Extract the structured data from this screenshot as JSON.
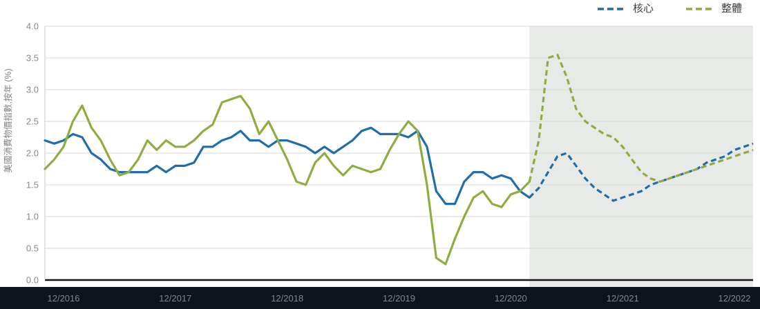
{
  "legend": {
    "items": [
      {
        "id": "core",
        "label": "核心",
        "color": "#1f6dad"
      },
      {
        "id": "headline",
        "label": "整體",
        "color": "#8ead41"
      }
    ]
  },
  "chart_data": {
    "type": "line",
    "title": "",
    "xlabel": "",
    "ylabel": "美國消費物價指數,按年 (%)",
    "ylim": [
      0,
      4
    ],
    "yticks": [
      0.0,
      0.5,
      1.0,
      1.5,
      2.0,
      2.5,
      3.0,
      3.5,
      4.0
    ],
    "x_start": "2016-10",
    "x_end": "2023-02",
    "x_interval": "monthly",
    "xtick_labels": [
      "12/2016",
      "12/2017",
      "12/2018",
      "12/2019",
      "12/2020",
      "12/2021",
      "12/2022"
    ],
    "xtick_indices": [
      2,
      14,
      26,
      38,
      50,
      62,
      74
    ],
    "forecast_start_index": 52,
    "forecast_region_color": "#e8eae8",
    "axis_band_color": "#0d141c",
    "grid": true,
    "legend_position": "top-right",
    "series": [
      {
        "id": "core",
        "name": "核心",
        "color": "#1f6dad",
        "values": [
          2.2,
          2.15,
          2.2,
          2.3,
          2.25,
          2.0,
          1.9,
          1.75,
          1.7,
          1.7,
          1.7,
          1.7,
          1.8,
          1.7,
          1.8,
          1.8,
          1.85,
          2.1,
          2.1,
          2.2,
          2.25,
          2.35,
          2.2,
          2.2,
          2.1,
          2.2,
          2.2,
          2.15,
          2.1,
          2.0,
          2.1,
          2.0,
          2.1,
          2.2,
          2.35,
          2.4,
          2.3,
          2.3,
          2.3,
          2.25,
          2.35,
          2.1,
          1.4,
          1.2,
          1.2,
          1.55,
          1.7,
          1.7,
          1.6,
          1.65,
          1.6,
          1.4,
          1.3,
          1.45,
          1.7,
          1.95,
          2.0,
          1.8,
          1.6,
          1.45,
          1.35,
          1.25,
          1.3,
          1.35,
          1.4,
          1.5,
          1.55,
          1.6,
          1.65,
          1.7,
          1.75,
          1.85,
          1.9,
          1.95,
          2.05,
          2.1,
          2.15
        ]
      },
      {
        "id": "headline",
        "name": "整體",
        "color": "#8ead41",
        "values": [
          1.75,
          1.9,
          2.1,
          2.5,
          2.75,
          2.4,
          2.2,
          1.9,
          1.65,
          1.7,
          1.9,
          2.2,
          2.05,
          2.2,
          2.1,
          2.1,
          2.2,
          2.35,
          2.45,
          2.8,
          2.85,
          2.9,
          2.7,
          2.3,
          2.5,
          2.2,
          1.9,
          1.55,
          1.5,
          1.85,
          2.0,
          1.8,
          1.65,
          1.8,
          1.75,
          1.7,
          1.75,
          2.05,
          2.3,
          2.5,
          2.35,
          1.5,
          0.35,
          0.25,
          0.65,
          1.0,
          1.3,
          1.4,
          1.2,
          1.15,
          1.35,
          1.4,
          1.55,
          2.2,
          3.5,
          3.55,
          3.2,
          2.7,
          2.5,
          2.4,
          2.3,
          2.25,
          2.1,
          1.9,
          1.7,
          1.6,
          1.55,
          1.6,
          1.65,
          1.7,
          1.75,
          1.8,
          1.85,
          1.9,
          1.95,
          2.0,
          2.05
        ]
      }
    ]
  }
}
